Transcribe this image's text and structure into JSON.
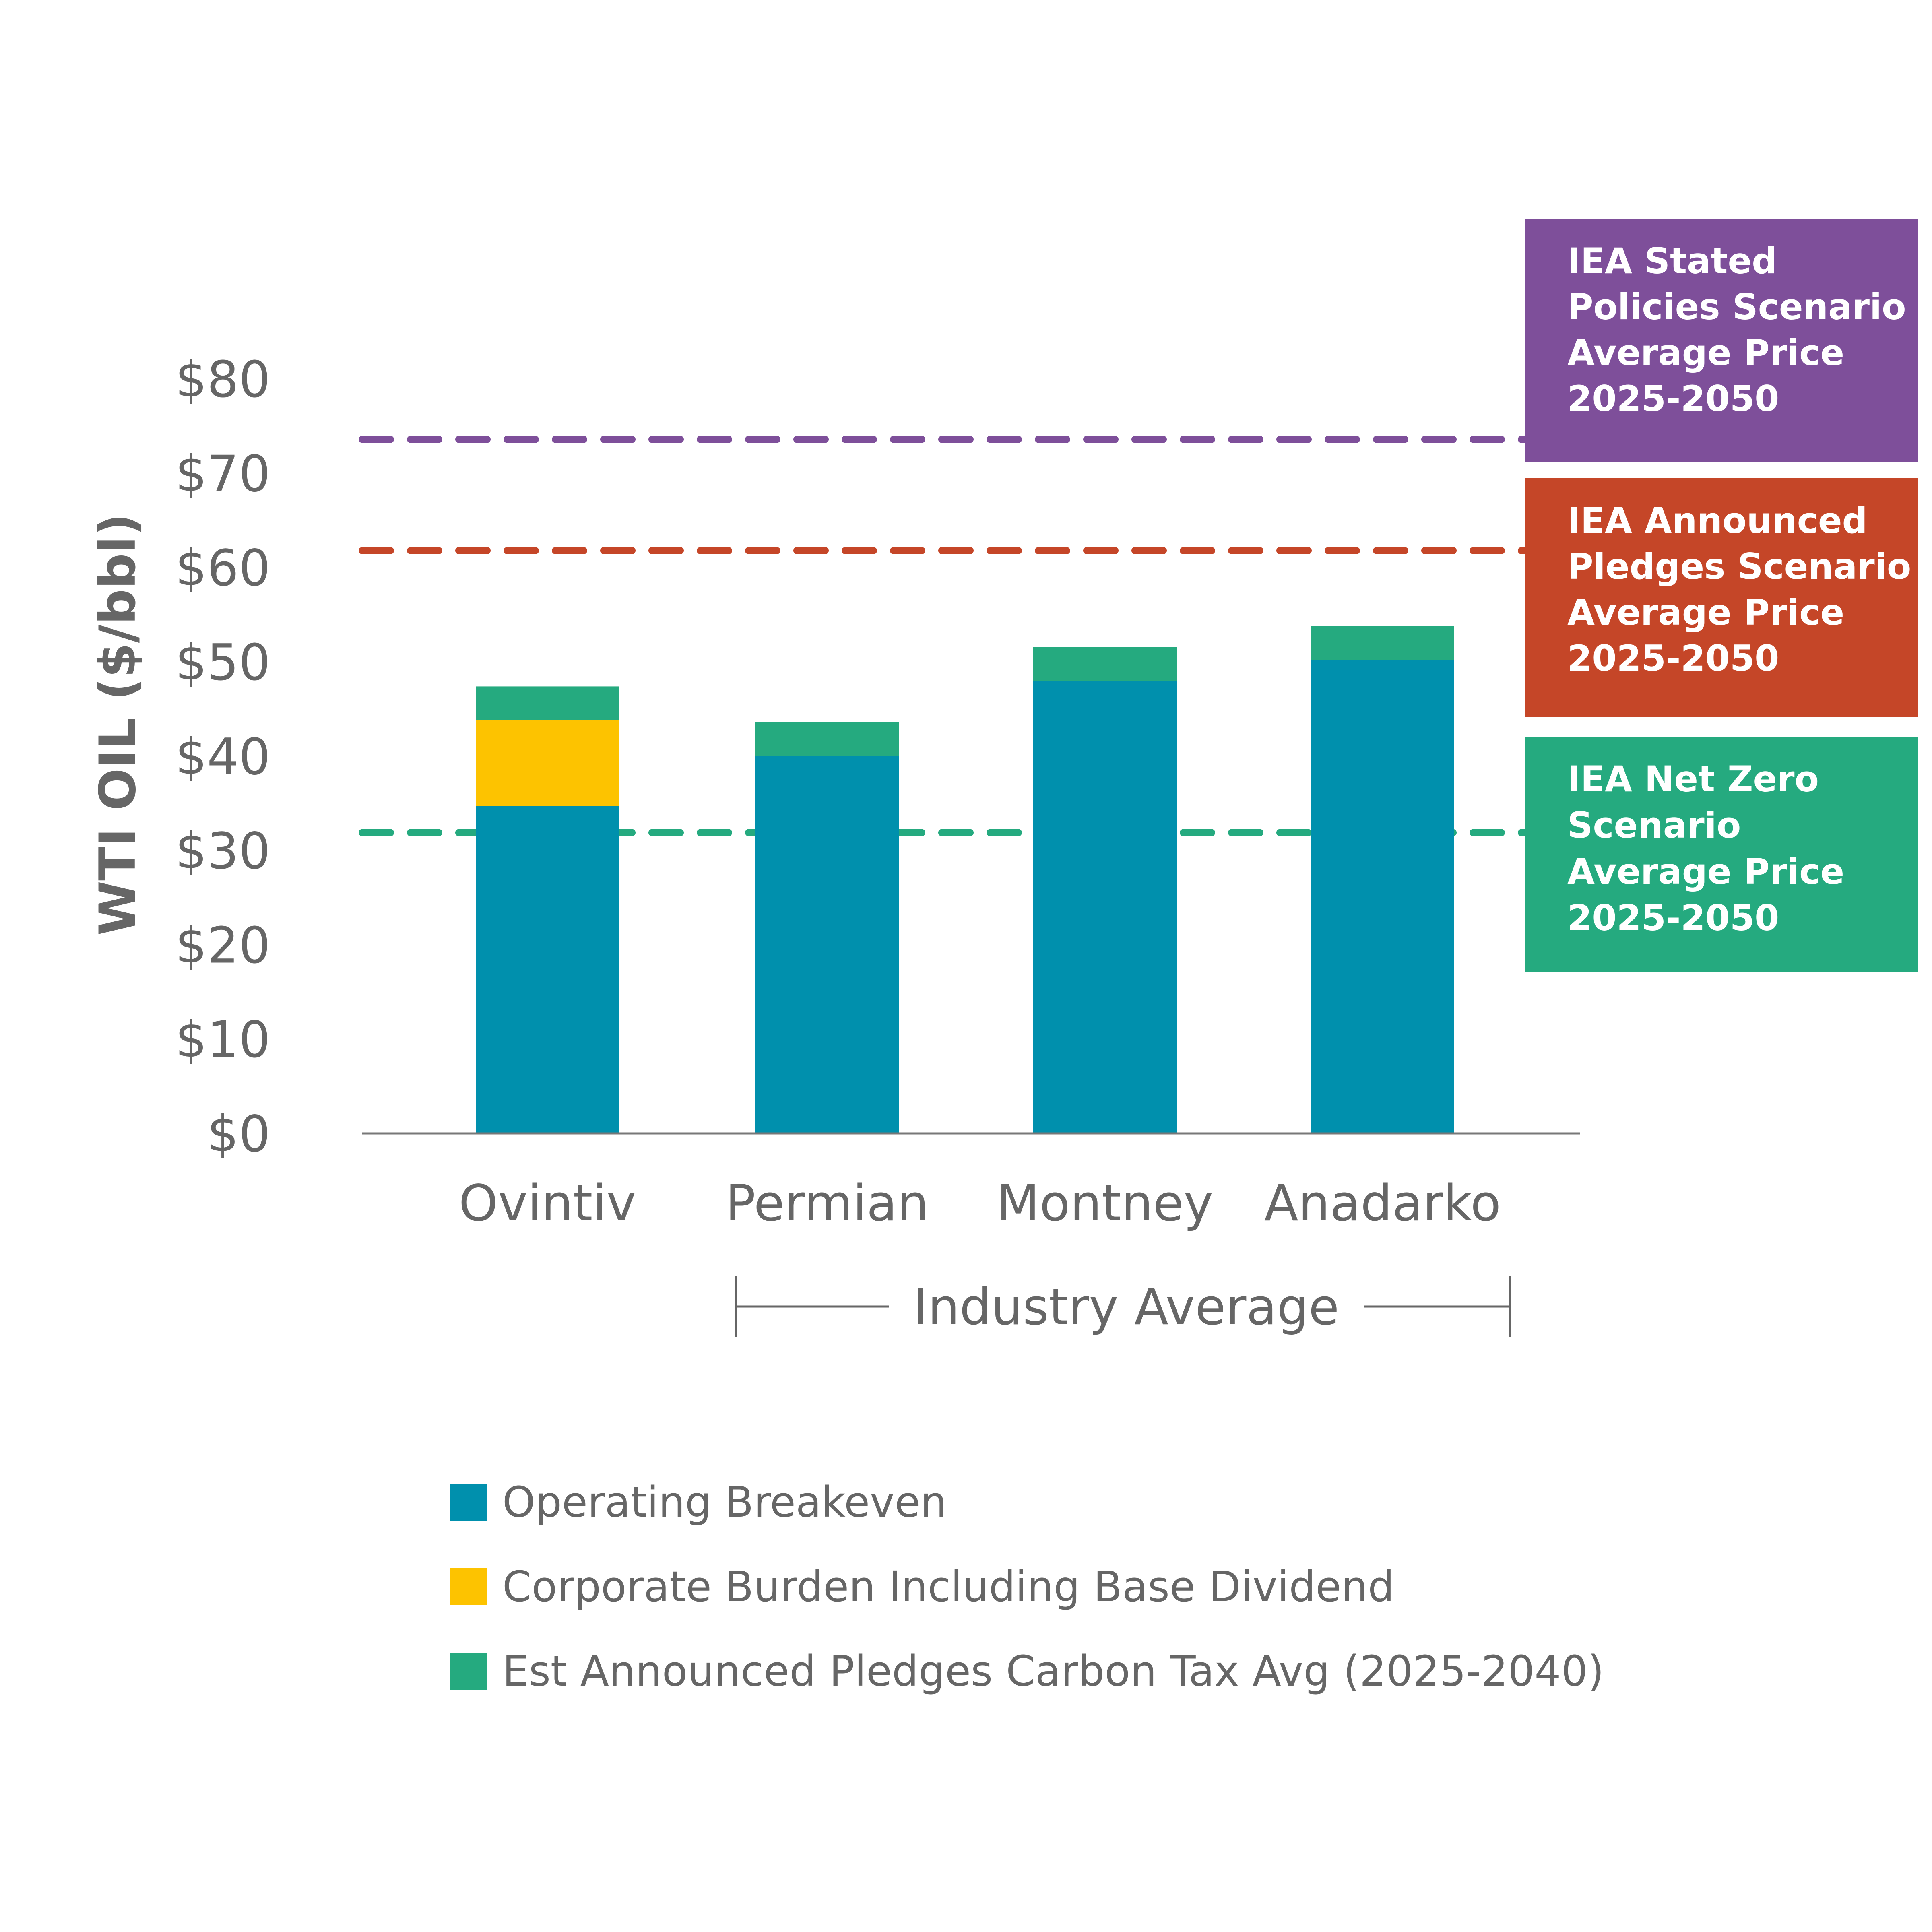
{
  "chart_data": {
    "type": "bar",
    "stacked": true,
    "ylabel": "WTI OIL ($/bbl)",
    "ylim": [
      0,
      80
    ],
    "y_ticks": [
      "$0",
      "$10",
      "$20",
      "$30",
      "$40",
      "$50",
      "$60",
      "$70",
      "$80"
    ],
    "y_tick_values": [
      0,
      10,
      20,
      30,
      40,
      50,
      60,
      70,
      80
    ],
    "categories": [
      "Ovintiv",
      "Permian",
      "Montney",
      "Anadarko"
    ],
    "series": [
      {
        "name": "Operating Breakeven",
        "color": "#0090ad",
        "values": [
          34.7,
          40,
          48,
          50.2
        ]
      },
      {
        "name": "Corporate Burden Including Base Dividend",
        "color": "#fdc300",
        "values": [
          9.1,
          0,
          0,
          0
        ]
      },
      {
        "name": "Est Announced Pledges Carbon Tax Avg (2025-2040)",
        "color": "#25aa7f",
        "values": [
          3.6,
          3.6,
          3.6,
          3.6
        ]
      }
    ],
    "reference_lines": [
      {
        "value": 73.6,
        "color": "#7e4f9a",
        "label_lines": [
          "IEA Stated",
          "Policies Scenario",
          "Average Price",
          "2025-2050"
        ]
      },
      {
        "value": 61.8,
        "color": "#c54628",
        "label_lines": [
          "IEA Announced",
          "Pledges Scenario",
          "Average Price",
          "2025-2050"
        ]
      },
      {
        "value": 31.9,
        "color": "#25aa7f",
        "label_lines": [
          "IEA Net Zero",
          "Scenario",
          "Average Price",
          "2025-2050"
        ]
      }
    ],
    "group_bracket": {
      "label": "Industry Average",
      "from_category": 1,
      "to_category": 3
    },
    "legend_position": "bottom"
  }
}
